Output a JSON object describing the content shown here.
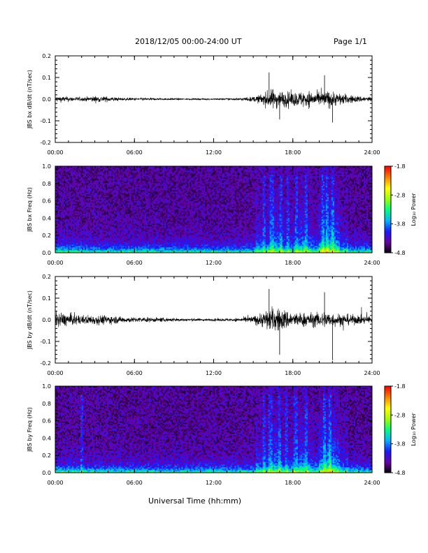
{
  "header": {
    "date_range": "2018/12/05  00:00-24:00 UT",
    "page": "Page 1/1"
  },
  "footer": {
    "xlabel": "Universal Time (hh:mm)"
  },
  "colorbar": {
    "title": "Log₁₀ Power",
    "ticks": [
      -1.8,
      -2.8,
      -3.8,
      -4.8
    ],
    "tick_labels": [
      "-1.8",
      "-2.8",
      "-3.8",
      "-4.8"
    ],
    "range": [
      -4.8,
      -1.8
    ],
    "colormap": [
      "#000000",
      "#6a00a8",
      "#1a1aff",
      "#00b4ff",
      "#00ff80",
      "#a0ff00",
      "#ffff00",
      "#ff8000",
      "#ff0000"
    ]
  },
  "time_ticks": [
    "00:00",
    "06:00",
    "12:00",
    "18:00",
    "24:00"
  ],
  "chart_data": [
    {
      "type": "line",
      "ylabel": "JBS bx dB/dt (nT/sec)",
      "xlim": [
        0,
        24
      ],
      "ylim": [
        -0.2,
        0.2
      ],
      "yticks": [
        -0.2,
        -0.1,
        0.0,
        0.1,
        0.2
      ],
      "ytick_labels": [
        "-0.2",
        "-0.1",
        "0.0",
        "0.1",
        "0.2"
      ],
      "envelope": {
        "hours": [
          0,
          1,
          2,
          3,
          4,
          5,
          6,
          7,
          8,
          9,
          10,
          11,
          12,
          13,
          14,
          15,
          15.5,
          16,
          16.5,
          17,
          17.5,
          18,
          18.5,
          19,
          19.5,
          20,
          20.5,
          21,
          21.5,
          22,
          22.5,
          23,
          24
        ],
        "amplitude": [
          0.025,
          0.02,
          0.015,
          0.025,
          0.02,
          0.012,
          0.01,
          0.01,
          0.008,
          0.008,
          0.006,
          0.006,
          0.005,
          0.008,
          0.01,
          0.02,
          0.035,
          0.06,
          0.08,
          0.07,
          0.06,
          0.055,
          0.06,
          0.07,
          0.06,
          0.05,
          0.07,
          0.06,
          0.05,
          0.04,
          0.03,
          0.025,
          0.02
        ]
      },
      "peak_max": 0.13,
      "peak_min": -0.11
    },
    {
      "type": "heatmap",
      "ylabel": "JBS bx Freq (Hz)",
      "xlim": [
        0,
        24
      ],
      "ylim": [
        0.0,
        1.0
      ],
      "yticks": [
        0.0,
        0.2,
        0.4,
        0.6,
        0.8,
        1.0
      ],
      "ytick_labels": [
        "0.0",
        "0.2",
        "0.4",
        "0.6",
        "0.8",
        "1.0"
      ],
      "zlabel": "Log₁₀ Power",
      "zlim": [
        -4.8,
        -1.8
      ],
      "bright_bands_hours": [
        15.8,
        16.4,
        17.1,
        17.6,
        18.3,
        19.0,
        20.3,
        20.6,
        21.0
      ]
    },
    {
      "type": "line",
      "ylabel": "JBS by dB/dt (nT/sec)",
      "xlim": [
        0,
        24
      ],
      "ylim": [
        -0.2,
        0.2
      ],
      "yticks": [
        -0.2,
        -0.1,
        0.0,
        0.1,
        0.2
      ],
      "ytick_labels": [
        "-0.2",
        "-0.1",
        "0.0",
        "0.1",
        "0.2"
      ],
      "envelope": {
        "hours": [
          0,
          1,
          2,
          3,
          4,
          5,
          6,
          7,
          8,
          9,
          10,
          11,
          12,
          13,
          14,
          15,
          15.5,
          16,
          16.5,
          17,
          17.5,
          18,
          18.5,
          19,
          19.5,
          20,
          20.5,
          21,
          21.5,
          22,
          22.5,
          23,
          24
        ],
        "amplitude": [
          0.06,
          0.05,
          0.035,
          0.04,
          0.035,
          0.025,
          0.02,
          0.02,
          0.016,
          0.015,
          0.012,
          0.01,
          0.01,
          0.012,
          0.015,
          0.03,
          0.05,
          0.08,
          0.1,
          0.09,
          0.08,
          0.06,
          0.055,
          0.06,
          0.055,
          0.06,
          0.07,
          0.055,
          0.05,
          0.045,
          0.04,
          0.035,
          0.03
        ]
      },
      "peak_max": 0.15,
      "peak_min": -0.19
    },
    {
      "type": "heatmap",
      "ylabel": "JBS by Freq (Hz)",
      "xlim": [
        0,
        24
      ],
      "ylim": [
        0.0,
        1.0
      ],
      "yticks": [
        0.0,
        0.2,
        0.4,
        0.6,
        0.8,
        1.0
      ],
      "ytick_labels": [
        "0.0",
        "0.2",
        "0.4",
        "0.6",
        "0.8",
        "1.0"
      ],
      "zlabel": "Log₁₀ Power",
      "zlim": [
        -4.8,
        -1.8
      ],
      "bright_bands_hours": [
        2.0,
        15.8,
        16.3,
        17.0,
        17.5,
        18.2,
        19.0,
        20.4,
        20.8
      ]
    }
  ]
}
